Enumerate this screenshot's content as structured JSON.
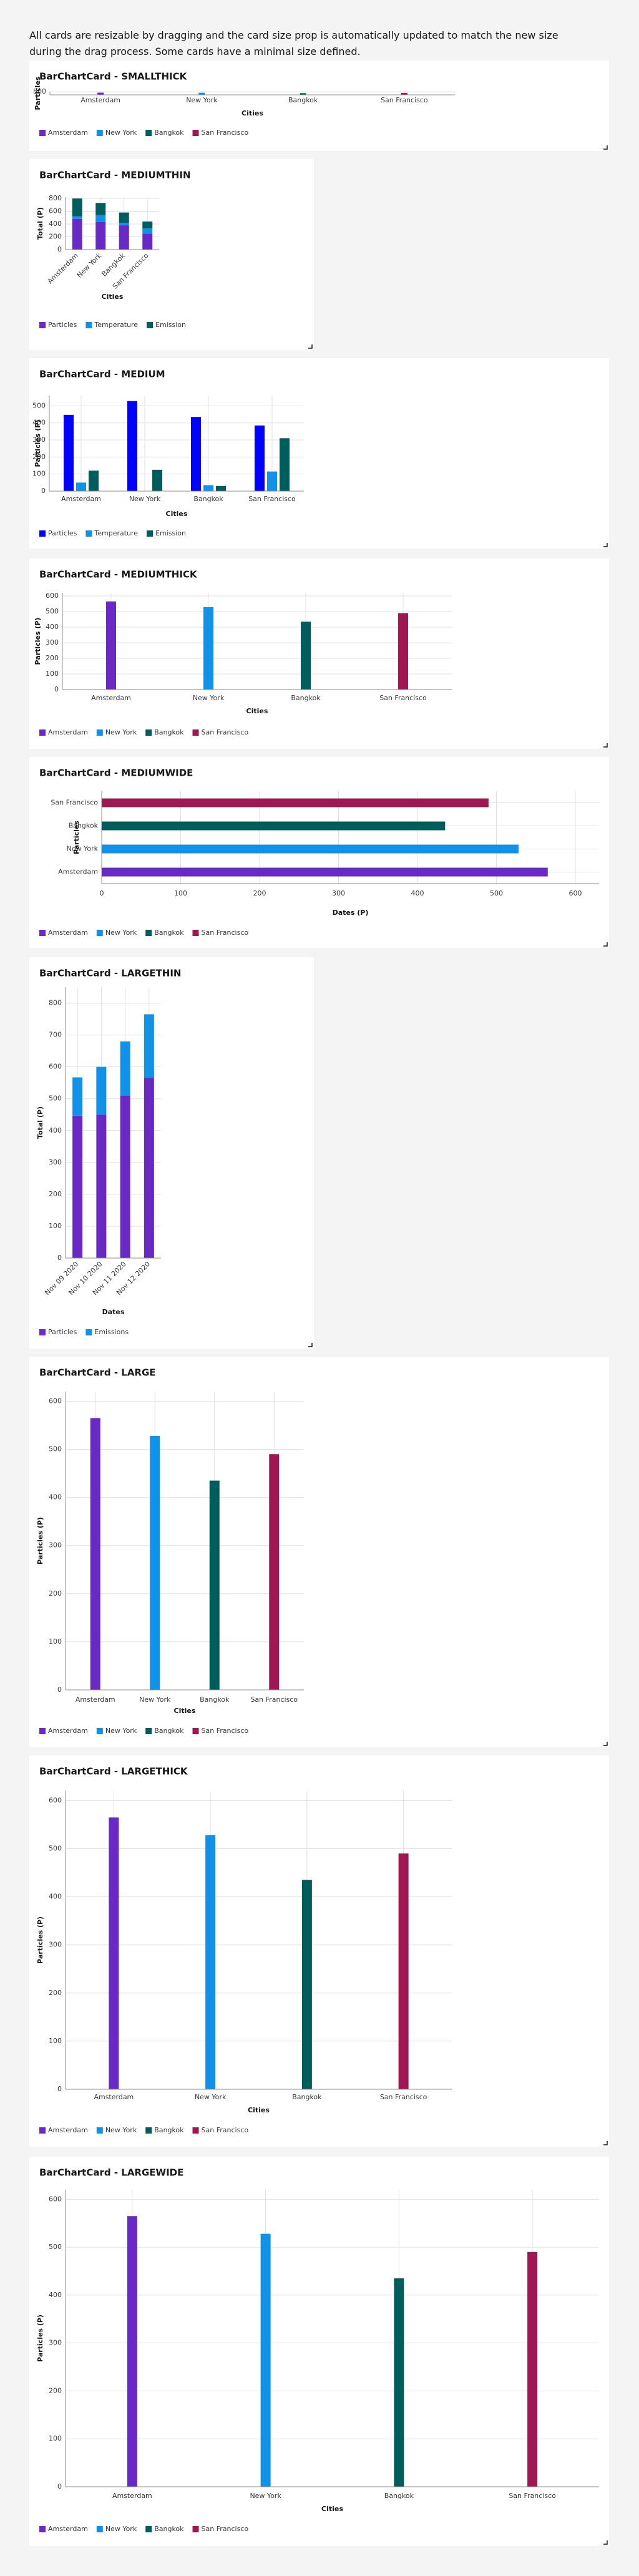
{
  "intro": "All cards are resizable by dragging and the card size prop is automatically updated to match the new size during the drag process. Some cards have a minimal size defined.",
  "chart_data": [
    {
      "type": "bar",
      "title": "BarChartCard - SMALLTHICK",
      "categories": [
        "Amsterdam",
        "New York",
        "Bangkok",
        "San Francisco"
      ],
      "values": [
        565,
        528,
        435,
        490
      ],
      "colors": [
        "#6929c4",
        "#1192e8",
        "#005d5d",
        "#9f1853"
      ],
      "ylim": [
        0,
        800
      ],
      "yticks": [
        800
      ],
      "xlabel": "Cities",
      "ylabel": "Particles"
    },
    {
      "type": "bar",
      "title": "BarChartCard - MEDIUMTHIN",
      "stacked": true,
      "categories": [
        "Amsterdam",
        "New York",
        "Bangkok",
        "San Francisco"
      ],
      "series": [
        {
          "name": "Particles",
          "color": "#6929c4",
          "values": [
            480,
            430,
            380,
            250
          ]
        },
        {
          "name": "Temperature",
          "color": "#1192e8",
          "values": [
            40,
            110,
            40,
            80
          ]
        },
        {
          "name": "Emission",
          "color": "#005d5d",
          "values": [
            280,
            190,
            160,
            110
          ]
        }
      ],
      "ylim": [
        0,
        820
      ],
      "yticks": [
        0,
        200,
        400,
        600,
        800
      ],
      "xlabel": "Cities",
      "ylabel": "Total (P)"
    },
    {
      "type": "bar",
      "title": "BarChartCard - MEDIUM",
      "stacked": false,
      "categories": [
        "Amsterdam",
        "New York",
        "Bangkok",
        "San Francisco"
      ],
      "series": [
        {
          "name": "Particles",
          "color": "#0000ff",
          "values": [
            447,
            528,
            435,
            385
          ]
        },
        {
          "name": "Temperature",
          "color": "#1192e8",
          "values": [
            50,
            0,
            35,
            115
          ]
        },
        {
          "name": "Emission",
          "color": "#005d5d",
          "values": [
            120,
            125,
            30,
            310
          ]
        }
      ],
      "ylim": [
        0,
        560
      ],
      "yticks": [
        0,
        100,
        200,
        300,
        400,
        500
      ],
      "xlabel": "Cities",
      "ylabel": "Particles (P)"
    },
    {
      "type": "bar",
      "title": "BarChartCard - MEDIUMTHICK",
      "categories": [
        "Amsterdam",
        "New York",
        "Bangkok",
        "San Francisco"
      ],
      "values": [
        565,
        528,
        435,
        490
      ],
      "colors": [
        "#6929c4",
        "#1192e8",
        "#005d5d",
        "#9f1853"
      ],
      "ylim": [
        0,
        620
      ],
      "yticks": [
        0,
        100,
        200,
        300,
        400,
        500,
        600
      ],
      "xlabel": "Cities",
      "ylabel": "Particles (P)"
    },
    {
      "type": "bar",
      "title": "BarChartCard - MEDIUMWIDE",
      "orientation": "horizontal",
      "categories": [
        "Amsterdam",
        "New York",
        "Bangkok",
        "San Francisco"
      ],
      "values": [
        565,
        528,
        435,
        490
      ],
      "colors": [
        "#6929c4",
        "#1192e8",
        "#005d5d",
        "#9f1853"
      ],
      "xlim": [
        0,
        630
      ],
      "xticks": [
        0,
        100,
        200,
        300,
        400,
        500,
        600
      ],
      "xlabel": "Dates (P)",
      "ylabel": "Particles"
    },
    {
      "type": "bar",
      "title": "BarChartCard - LARGETHIN",
      "stacked": true,
      "categories": [
        "Nov 09 2020",
        "Nov 10 2020",
        "Nov 11 2020",
        "Nov 12 2020"
      ],
      "series": [
        {
          "name": "Particles",
          "color": "#6929c4",
          "values": [
            447,
            450,
            510,
            565
          ]
        },
        {
          "name": "Emissions",
          "color": "#1192e8",
          "values": [
            120,
            150,
            170,
            200
          ]
        }
      ],
      "ylim": [
        0,
        850
      ],
      "yticks": [
        0,
        100,
        200,
        300,
        400,
        500,
        600,
        700,
        800
      ],
      "xlabel": "Dates",
      "ylabel": "Total (P)"
    },
    {
      "type": "bar",
      "title": "BarChartCard - LARGE",
      "categories": [
        "Amsterdam",
        "New York",
        "Bangkok",
        "San Francisco"
      ],
      "values": [
        565,
        528,
        435,
        490
      ],
      "colors": [
        "#6929c4",
        "#1192e8",
        "#005d5d",
        "#9f1853"
      ],
      "ylim": [
        0,
        620
      ],
      "yticks": [
        0,
        100,
        200,
        300,
        400,
        500,
        600
      ],
      "xlabel": "Cities",
      "ylabel": "Particles (P)"
    },
    {
      "type": "bar",
      "title": "BarChartCard - LARGETHICK",
      "categories": [
        "Amsterdam",
        "New York",
        "Bangkok",
        "San Francisco"
      ],
      "values": [
        565,
        528,
        435,
        490
      ],
      "colors": [
        "#6929c4",
        "#1192e8",
        "#005d5d",
        "#9f1853"
      ],
      "ylim": [
        0,
        620
      ],
      "yticks": [
        0,
        100,
        200,
        300,
        400,
        500,
        600
      ],
      "xlabel": "Cities",
      "ylabel": "Particles (P)"
    },
    {
      "type": "bar",
      "title": "BarChartCard - LARGEWIDE",
      "categories": [
        "Amsterdam",
        "New York",
        "Bangkok",
        "San Francisco"
      ],
      "values": [
        565,
        528,
        435,
        490
      ],
      "colors": [
        "#6929c4",
        "#1192e8",
        "#005d5d",
        "#9f1853"
      ],
      "ylim": [
        0,
        620
      ],
      "yticks": [
        0,
        100,
        200,
        300,
        400,
        500,
        600
      ],
      "xlabel": "Cities",
      "ylabel": "Particles (P)"
    }
  ]
}
